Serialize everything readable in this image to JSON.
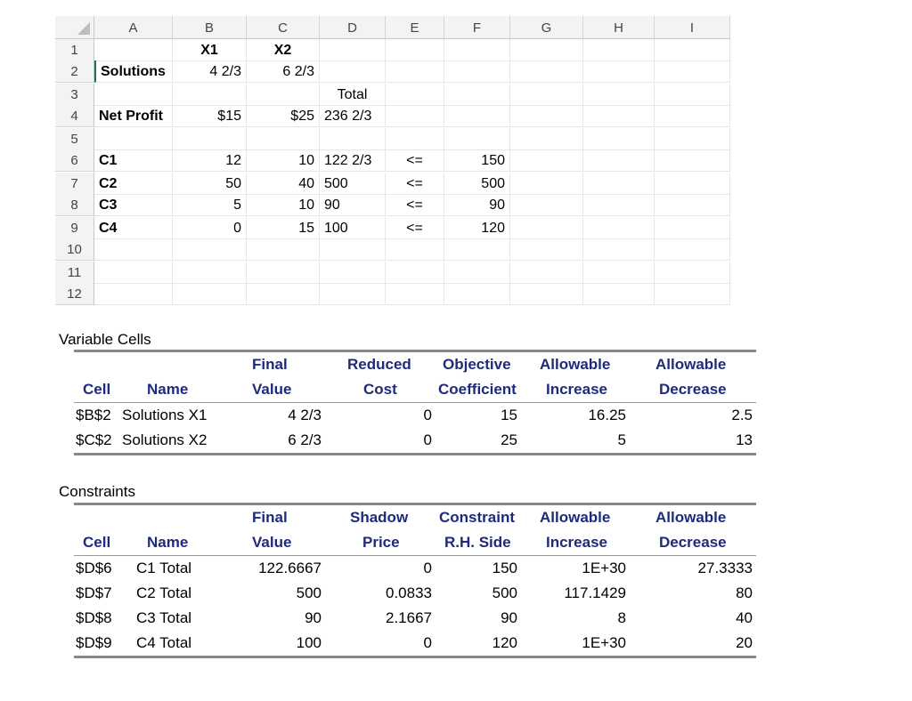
{
  "sheet": {
    "columns": [
      "A",
      "B",
      "C",
      "D",
      "E",
      "F",
      "G",
      "H",
      "I"
    ],
    "rows": [
      "1",
      "2",
      "3",
      "4",
      "5",
      "6",
      "7",
      "8",
      "9",
      "10",
      "11",
      "12"
    ],
    "header_x1": "X1",
    "header_x2": "X2",
    "solutions_label": "Solutions",
    "solutions_x1": "4 2/3",
    "solutions_x2": "6 2/3",
    "total_label": "Total",
    "net_profit_label": "Net Profit",
    "net_profit_x1": "$15",
    "net_profit_x2": "$25",
    "net_profit_total": "236 2/3",
    "constraints": [
      {
        "name": "C1",
        "x1": "12",
        "x2": "10",
        "total": "122 2/3",
        "op": "<=",
        "rhs": "150"
      },
      {
        "name": "C2",
        "x1": "50",
        "x2": "40",
        "total": "500",
        "op": "<=",
        "rhs": "500"
      },
      {
        "name": "C3",
        "x1": "5",
        "x2": "10",
        "total": "90",
        "op": "<=",
        "rhs": "90"
      },
      {
        "name": "C4",
        "x1": "0",
        "x2": "15",
        "total": "100",
        "op": "<=",
        "rhs": "120"
      }
    ]
  },
  "variable_cells": {
    "title": "Variable Cells",
    "headers": {
      "cell": "Cell",
      "name": "Name",
      "final1": "Final",
      "final2": "Value",
      "red1": "Reduced",
      "red2": "Cost",
      "obj1": "Objective",
      "obj2": "Coefficient",
      "inc1": "Allowable",
      "inc2": "Increase",
      "dec1": "Allowable",
      "dec2": "Decrease"
    },
    "rows": [
      {
        "cell": "$B$2",
        "name": "Solutions X1",
        "final": "4 2/3",
        "reduced": "0",
        "coef": "15",
        "inc": "16.25",
        "dec": "2.5"
      },
      {
        "cell": "$C$2",
        "name": "Solutions X2",
        "final": "6 2/3",
        "reduced": "0",
        "coef": "25",
        "inc": "5",
        "dec": "13"
      }
    ]
  },
  "constraints_report": {
    "title": "Constraints",
    "headers": {
      "cell": "Cell",
      "name": "Name",
      "final1": "Final",
      "final2": "Value",
      "sh1": "Shadow",
      "sh2": "Price",
      "con1": "Constraint",
      "con2": "R.H. Side",
      "inc1": "Allowable",
      "inc2": "Increase",
      "dec1": "Allowable",
      "dec2": "Decrease"
    },
    "rows": [
      {
        "cell": "$D$6",
        "name": "C1 Total",
        "final": "122.6667",
        "shadow": "0",
        "rhs": "150",
        "inc": "1E+30",
        "dec": "27.3333"
      },
      {
        "cell": "$D$7",
        "name": "C2 Total",
        "final": "500",
        "shadow": "0.0833",
        "rhs": "500",
        "inc": "117.1429",
        "dec": "80"
      },
      {
        "cell": "$D$8",
        "name": "C3 Total",
        "final": "90",
        "shadow": "2.1667",
        "rhs": "90",
        "inc": "8",
        "dec": "40"
      },
      {
        "cell": "$D$9",
        "name": "C4 Total",
        "final": "100",
        "shadow": "0",
        "rhs": "120",
        "inc": "1E+30",
        "dec": "20"
      }
    ]
  }
}
